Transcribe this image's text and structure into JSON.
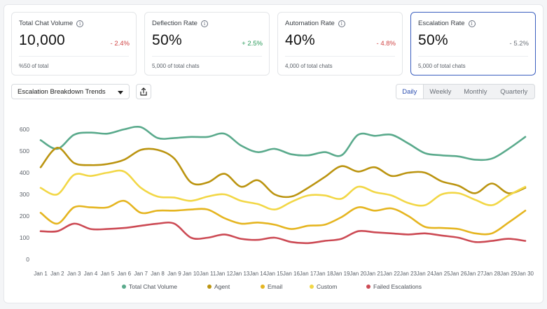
{
  "cards": [
    {
      "title": "Total Chat Volume",
      "value": "10,000",
      "delta": "- 2.4%",
      "delta_color": "#d04545",
      "sub": "%50 of total"
    },
    {
      "title": "Deflection Rate",
      "value": "50%",
      "delta": "+ 2.5%",
      "delta_color": "#2a9a5a",
      "sub": "5,000 of total chats"
    },
    {
      "title": "Automation Rate",
      "value": "40%",
      "delta": "- 4.8%",
      "delta_color": "#d04545",
      "sub": "4,000 of total chats"
    },
    {
      "title": "Escalation Rate",
      "value": "50%",
      "delta": "- 5.2%",
      "delta_color": "#6b7078",
      "sub": "5,000 of total chats"
    }
  ],
  "controls": {
    "dropdown_label": "Escalation Breakdown Trends",
    "tabs": [
      "Daily",
      "Weekly",
      "Monthly",
      "Quarterly"
    ],
    "active_tab": "Daily"
  },
  "chart_data": {
    "type": "line",
    "title": "Escalation Breakdown Trends",
    "xlabel": "",
    "ylabel": "",
    "ylim": [
      0,
      600
    ],
    "y_ticks": [
      0,
      100,
      200,
      300,
      400,
      500,
      600
    ],
    "categories": [
      "Jan 1",
      "Jan 2",
      "Jan 3",
      "Jan 4",
      "Jan 5",
      "Jan 6",
      "Jan 7",
      "Jan 8",
      "Jan 9",
      "Jan 10",
      "Jan 11",
      "Jan 12",
      "Jan 13",
      "Jan 14",
      "Jan 15",
      "Jan 16",
      "Jan 17",
      "Jan 18",
      "Jan 19",
      "Jan 20",
      "Jan 21",
      "Jan 22",
      "Jan 23",
      "Jan 24",
      "Jan 25",
      "Jan 26",
      "Jan 27",
      "Jan 28",
      "Jan 29",
      "Jan 30"
    ],
    "series": [
      {
        "name": "Total Chat Volume",
        "color": "#5aaa8c",
        "values": [
          550,
          510,
          575,
          585,
          580,
          600,
          610,
          560,
          560,
          565,
          565,
          580,
          525,
          495,
          510,
          485,
          480,
          495,
          480,
          575,
          570,
          575,
          535,
          490,
          480,
          475,
          460,
          465,
          510,
          565
        ]
      },
      {
        "name": "Agent",
        "color": "#bb9410",
        "values": [
          425,
          515,
          445,
          435,
          440,
          460,
          505,
          505,
          465,
          355,
          355,
          395,
          335,
          365,
          300,
          290,
          330,
          380,
          430,
          405,
          425,
          385,
          400,
          400,
          360,
          340,
          305,
          350,
          305,
          330
        ]
      },
      {
        "name": "Email",
        "color": "#e5b520",
        "values": [
          215,
          165,
          240,
          240,
          240,
          270,
          215,
          225,
          225,
          230,
          230,
          190,
          165,
          170,
          160,
          140,
          155,
          160,
          195,
          240,
          225,
          235,
          200,
          150,
          145,
          140,
          120,
          120,
          170,
          225
        ]
      },
      {
        "name": "Custom",
        "color": "#f2d746",
        "values": [
          330,
          300,
          390,
          385,
          400,
          405,
          330,
          290,
          285,
          270,
          290,
          300,
          270,
          255,
          230,
          265,
          295,
          295,
          280,
          335,
          310,
          295,
          260,
          250,
          300,
          305,
          275,
          250,
          295,
          335
        ]
      },
      {
        "name": "Failed Escalations",
        "color": "#cc4a54",
        "values": [
          130,
          130,
          165,
          140,
          140,
          145,
          155,
          165,
          165,
          100,
          100,
          115,
          95,
          90,
          100,
          80,
          75,
          85,
          95,
          130,
          125,
          120,
          115,
          120,
          110,
          100,
          80,
          85,
          95,
          85
        ]
      }
    ]
  }
}
